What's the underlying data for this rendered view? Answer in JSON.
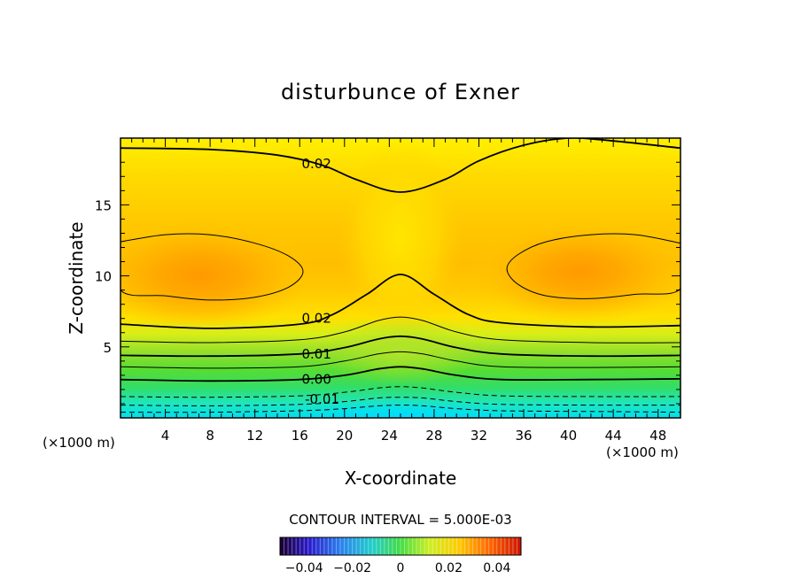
{
  "chart_data": {
    "type": "contour",
    "title": "disturbunce of Exner",
    "xlabel": "X-coordinate",
    "ylabel": "Z-coordinate",
    "x_unit": "(×1000 m)",
    "z_unit": "(×1000 m)",
    "xlim": [
      0,
      50
    ],
    "ylim": [
      0,
      19.7
    ],
    "x_ticks": [
      4,
      8,
      12,
      16,
      20,
      24,
      28,
      32,
      36,
      40,
      44,
      48
    ],
    "y_ticks": [
      5,
      10,
      15
    ],
    "contour_interval_text": "CONTOUR INTERVAL = 5.000E-03",
    "contour_labels": [
      {
        "text": "0.02",
        "x": 17.5,
        "z": 17.9
      },
      {
        "text": "0.02",
        "x": 17.5,
        "z": 7.0
      },
      {
        "text": "0.01",
        "x": 17.5,
        "z": 4.5
      },
      {
        "text": "0.00",
        "x": 17.5,
        "z": 2.7
      },
      {
        "text": "-0.01",
        "x": 18.0,
        "z": 1.3
      }
    ],
    "colorbar": {
      "range": [
        -0.05,
        0.05
      ],
      "ticks": [
        -0.04,
        -0.02,
        0,
        0.02,
        0.04
      ],
      "tick_labels": [
        "−0.04",
        "−0.02",
        "0",
        "0.02",
        "0.04"
      ]
    },
    "contours": [
      {
        "level": -0.015,
        "style": "dashed",
        "points": [
          [
            0,
            0.4
          ],
          [
            8,
            0.4
          ],
          [
            16,
            0.5
          ],
          [
            20,
            0.65
          ],
          [
            23,
            0.85
          ],
          [
            25,
            0.9
          ],
          [
            27,
            0.85
          ],
          [
            30,
            0.65
          ],
          [
            34,
            0.5
          ],
          [
            42,
            0.45
          ],
          [
            50,
            0.4
          ]
        ]
      },
      {
        "level": -0.01,
        "style": "dashed",
        "points": [
          [
            0,
            0.9
          ],
          [
            8,
            0.85
          ],
          [
            16,
            0.95
          ],
          [
            20,
            1.15
          ],
          [
            23,
            1.4
          ],
          [
            25,
            1.45
          ],
          [
            27,
            1.4
          ],
          [
            30,
            1.15
          ],
          [
            34,
            0.95
          ],
          [
            42,
            0.9
          ],
          [
            50,
            0.9
          ]
        ]
      },
      {
        "level": -0.005,
        "style": "dashed",
        "points": [
          [
            0,
            1.5
          ],
          [
            8,
            1.45
          ],
          [
            16,
            1.55
          ],
          [
            20,
            1.8
          ],
          [
            23,
            2.1
          ],
          [
            25,
            2.2
          ],
          [
            27,
            2.1
          ],
          [
            30,
            1.8
          ],
          [
            34,
            1.55
          ],
          [
            42,
            1.5
          ],
          [
            50,
            1.5
          ]
        ]
      },
      {
        "level": 0.0,
        "style": "bold",
        "points": [
          [
            0,
            2.7
          ],
          [
            8,
            2.6
          ],
          [
            16,
            2.7
          ],
          [
            20,
            3.0
          ],
          [
            23,
            3.45
          ],
          [
            25,
            3.6
          ],
          [
            27,
            3.45
          ],
          [
            30,
            3.0
          ],
          [
            34,
            2.7
          ],
          [
            42,
            2.7
          ],
          [
            50,
            2.75
          ]
        ]
      },
      {
        "level": 0.005,
        "style": "thin",
        "points": [
          [
            0,
            3.6
          ],
          [
            8,
            3.5
          ],
          [
            16,
            3.6
          ],
          [
            20,
            4.0
          ],
          [
            23,
            4.5
          ],
          [
            25,
            4.65
          ],
          [
            27,
            4.5
          ],
          [
            30,
            4.0
          ],
          [
            34,
            3.6
          ],
          [
            42,
            3.55
          ],
          [
            50,
            3.6
          ]
        ]
      },
      {
        "level": 0.01,
        "style": "bold",
        "points": [
          [
            0,
            4.4
          ],
          [
            8,
            4.35
          ],
          [
            16,
            4.5
          ],
          [
            20,
            4.95
          ],
          [
            23,
            5.55
          ],
          [
            25,
            5.75
          ],
          [
            27,
            5.55
          ],
          [
            30,
            4.95
          ],
          [
            34,
            4.5
          ],
          [
            42,
            4.35
          ],
          [
            50,
            4.4
          ]
        ]
      },
      {
        "level": 0.015,
        "style": "thin",
        "points": [
          [
            0,
            5.4
          ],
          [
            8,
            5.3
          ],
          [
            16,
            5.5
          ],
          [
            20,
            6.05
          ],
          [
            23,
            6.85
          ],
          [
            25,
            7.1
          ],
          [
            27,
            6.85
          ],
          [
            30,
            6.05
          ],
          [
            34,
            5.5
          ],
          [
            42,
            5.3
          ],
          [
            50,
            5.3
          ]
        ]
      },
      {
        "level": 0.02,
        "style": "bold",
        "points": [
          [
            0,
            6.6
          ],
          [
            8,
            6.3
          ],
          [
            16,
            6.6
          ],
          [
            19,
            7.3
          ],
          [
            22,
            8.7
          ],
          [
            25,
            10.1
          ],
          [
            28,
            8.7
          ],
          [
            31,
            7.3
          ],
          [
            34,
            6.7
          ],
          [
            42,
            6.4
          ],
          [
            50,
            6.5
          ]
        ]
      },
      {
        "level": 0.02,
        "style": "bold",
        "points": [
          [
            0,
            19.0
          ],
          [
            8,
            18.9
          ],
          [
            14,
            18.5
          ],
          [
            18,
            17.8
          ],
          [
            21,
            16.8
          ],
          [
            25,
            15.9
          ],
          [
            29,
            16.8
          ],
          [
            32,
            18.1
          ],
          [
            36,
            19.2
          ],
          [
            40,
            19.7
          ],
          [
            44,
            19.5
          ],
          [
            50,
            19.0
          ]
        ]
      },
      {
        "level": 0.025,
        "style": "thin",
        "closed": true,
        "points": [
          [
            0,
            12.4
          ],
          [
            4,
            12.9
          ],
          [
            8,
            12.9
          ],
          [
            12,
            12.3
          ],
          [
            15,
            11.4
          ],
          [
            16.3,
            10.3
          ],
          [
            15,
            9.2
          ],
          [
            12,
            8.5
          ],
          [
            8,
            8.3
          ],
          [
            4,
            8.6
          ],
          [
            0,
            9.0
          ]
        ]
      },
      {
        "level": 0.025,
        "style": "thin",
        "closed": true,
        "points": [
          [
            50,
            12.3
          ],
          [
            46,
            12.9
          ],
          [
            42,
            12.9
          ],
          [
            38,
            12.4
          ],
          [
            35.5,
            11.5
          ],
          [
            34.5,
            10.5
          ],
          [
            35.5,
            9.4
          ],
          [
            38,
            8.6
          ],
          [
            42,
            8.4
          ],
          [
            46,
            8.7
          ],
          [
            50,
            9.1
          ]
        ]
      }
    ]
  }
}
